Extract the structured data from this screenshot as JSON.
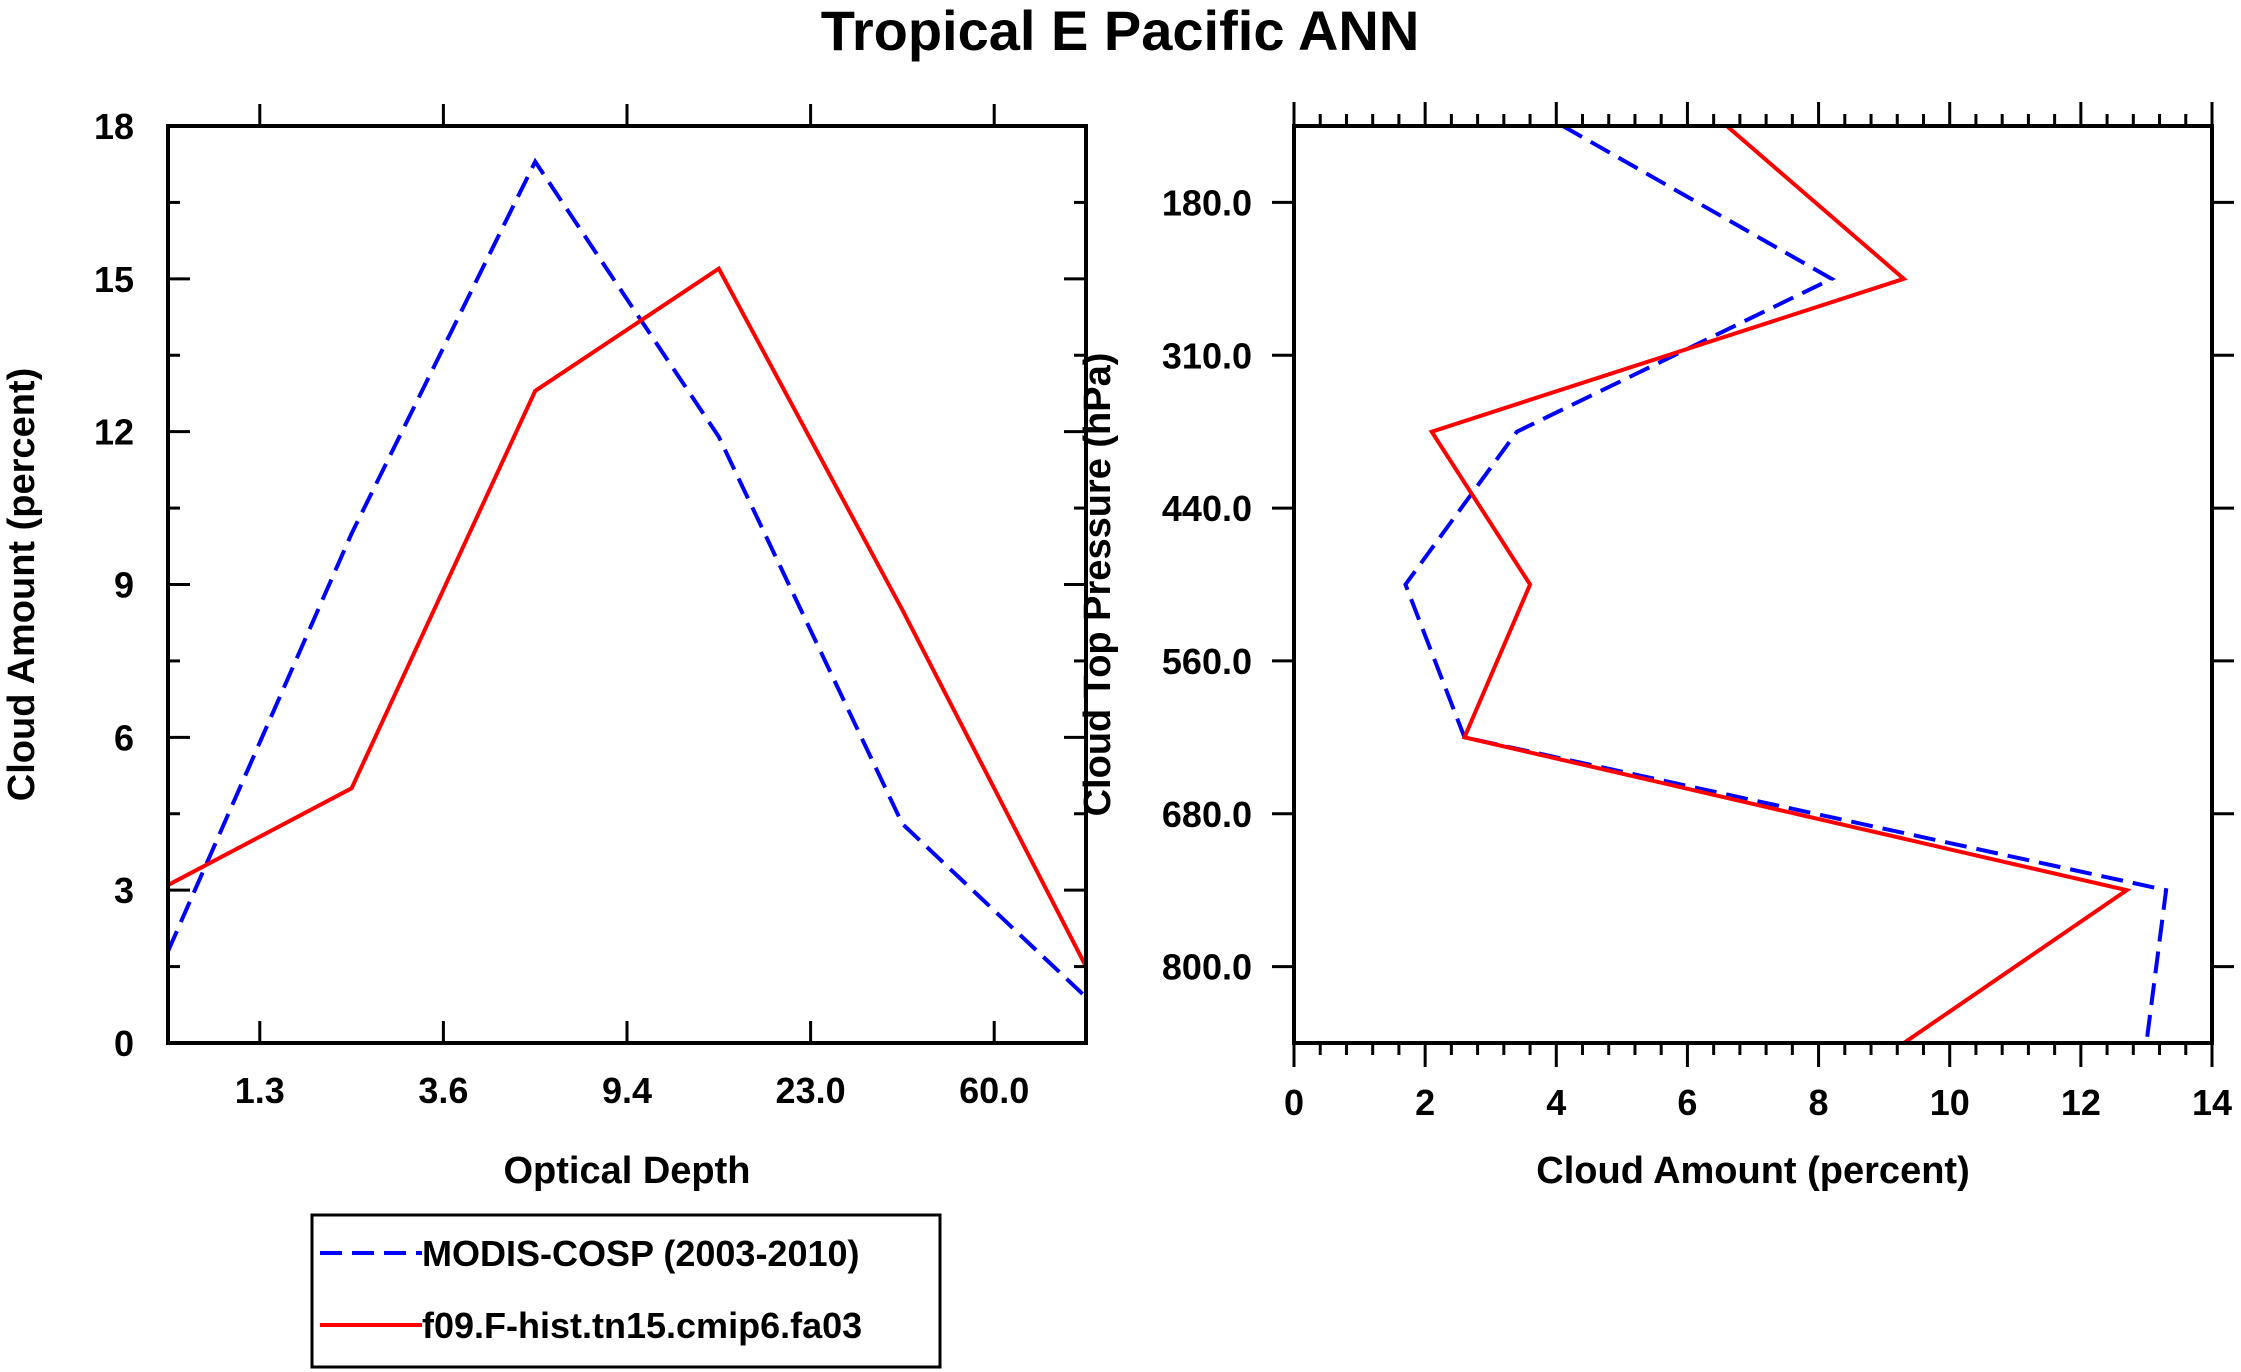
{
  "chart_data": [
    {
      "type": "line",
      "id": "left",
      "title": "Tropical E Pacific ANN",
      "xlabel": "Optical Depth",
      "ylabel": "Cloud Amount (percent)",
      "x_index": [
        0,
        1,
        2,
        3,
        4,
        5
      ],
      "x_tick_labels": [
        "1.3",
        "3.6",
        "9.4",
        "23.0",
        "60.0"
      ],
      "xlim_index": [
        0,
        5
      ],
      "ylim": [
        0,
        18
      ],
      "y_ticks": [
        0,
        3,
        6,
        9,
        12,
        15,
        18
      ],
      "y_tick_labels": [
        "0",
        "3",
        "6",
        "9",
        "12",
        "15",
        "18"
      ],
      "series": [
        {
          "name": "MODIS-COSP (2003-2010)",
          "style": "dashed",
          "color": "#0000ff",
          "values": [
            1.8,
            10.0,
            17.3,
            11.9,
            4.3,
            0.9
          ]
        },
        {
          "name": "f09.F-hist.tn15.cmip6.fa03",
          "style": "solid",
          "color": "#ff0000",
          "values": [
            3.1,
            5.0,
            12.8,
            15.2,
            8.5,
            1.5
          ]
        }
      ]
    },
    {
      "type": "line",
      "id": "right",
      "xlabel": "Cloud Amount (percent)",
      "ylabel": "Cloud Top Pressure (hPa)",
      "xlim": [
        0,
        14
      ],
      "x_ticks": [
        0,
        2,
        4,
        6,
        8,
        10,
        12,
        14
      ],
      "x_tick_labels": [
        "0",
        "2",
        "4",
        "6",
        "8",
        "10",
        "12",
        "14"
      ],
      "y_tick_labels": [
        "180.0",
        "310.0",
        "440.0",
        "560.0",
        "680.0",
        "800.0"
      ],
      "y_index": [
        0,
        1,
        2,
        3,
        4,
        5,
        6
      ],
      "ylim_index": [
        0,
        6
      ],
      "y_tick_positions_index": [
        0.5,
        1.5,
        2.5,
        3.5,
        4.5,
        5.5
      ],
      "series": [
        {
          "name": "MODIS-COSP (2003-2010)",
          "style": "dashed",
          "color": "#0000ff",
          "values": [
            4.1,
            8.2,
            3.4,
            1.7,
            2.6,
            13.3,
            13.0
          ]
        },
        {
          "name": "f09.F-hist.tn15.cmip6.fa03",
          "style": "solid",
          "color": "#ff0000",
          "values": [
            6.6,
            9.3,
            2.1,
            3.6,
            2.6,
            12.7,
            9.3
          ]
        }
      ]
    }
  ],
  "legend": {
    "items": [
      {
        "label": "MODIS-COSP (2003-2010)",
        "style": "dashed",
        "color": "#0000ff"
      },
      {
        "label": "f09.F-hist.tn15.cmip6.fa03",
        "style": "solid",
        "color": "#ff0000"
      }
    ]
  }
}
